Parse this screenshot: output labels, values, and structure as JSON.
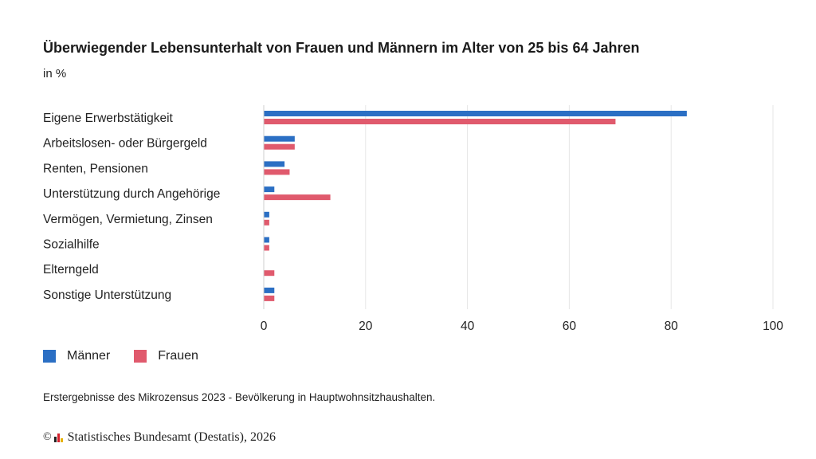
{
  "header": {
    "title": "Überwiegender Lebensunterhalt von Frauen und Männern im Alter von 25 bis 64 Jahren",
    "subtitle": "in %"
  },
  "chart_data": {
    "type": "bar",
    "orientation": "horizontal",
    "title": "Überwiegender Lebensunterhalt von Frauen und Männern im Alter von 25 bis 64 Jahren",
    "subtitle": "in %",
    "xlabel": "",
    "ylabel": "",
    "categories": [
      "Eigene Erwerbstätigkeit",
      "Arbeitslosen- oder Bürgergeld",
      "Renten, Pensionen",
      "Unterstützung durch Angehörige",
      "Vermögen, Vermietung, Zinsen",
      "Sozialhilfe",
      "Elterngeld",
      "Sonstige Unterstützung"
    ],
    "series": [
      {
        "name": "Männer",
        "color": "#2b6fc4",
        "values": [
          83,
          6,
          4,
          2,
          1,
          1,
          0,
          2
        ]
      },
      {
        "name": "Frauen",
        "color": "#e05a6d",
        "values": [
          69,
          6,
          5,
          13,
          1,
          1,
          2,
          2
        ]
      }
    ],
    "xlim": [
      0,
      100
    ],
    "xticks": [
      "0",
      "20",
      "40",
      "60",
      "80",
      "100"
    ],
    "grid": true,
    "legend_position": "bottom-left"
  },
  "legend": {
    "items": [
      {
        "label": "Männer",
        "color": "#2b6fc4"
      },
      {
        "label": "Frauen",
        "color": "#e05a6d"
      }
    ]
  },
  "footer": {
    "note": "Erstergebnisse des Mikrozensus 2023 - Bevölkerung in Hauptwohnsitzhaushalten.",
    "copyright_symbol": "©",
    "source": "Statistisches Bundesamt (Destatis), 2026",
    "logo_icon": "destatis-logo-icon",
    "logo_colors": [
      "#222222",
      "#d4202c",
      "#e8b000"
    ]
  }
}
